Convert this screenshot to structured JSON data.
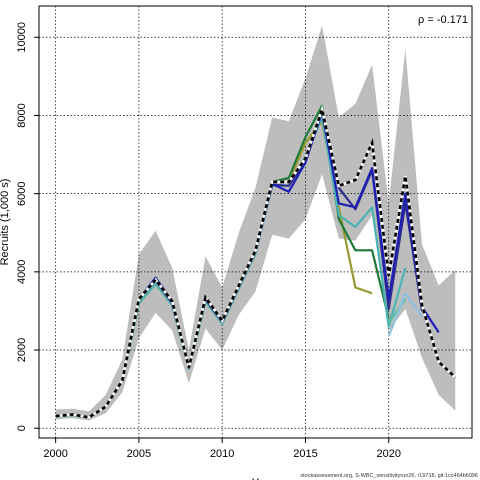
{
  "chart_data": {
    "type": "line",
    "title": "",
    "xlabel": "Y",
    "ylabel": "Recruits (1,000 s)",
    "xlim": [
      1999,
      2025
    ],
    "ylim": [
      -250,
      10800
    ],
    "xticks": [
      2000,
      2005,
      2010,
      2015,
      2020
    ],
    "yticks": [
      0,
      2000,
      4000,
      6000,
      8000,
      10000
    ],
    "grid": true,
    "annotation": "ρ = -0.171",
    "footer": "stockassessment.org, S-WBC_sensitivityrun26, r19718, git:1cc464b6096",
    "colors": {
      "band": "#bdbdbd",
      "base": "#000000",
      "peel1": "#1f1fb4",
      "peel2": "#2e2e8c",
      "peel3": "#4cb3b3",
      "peel4": "#1f7a3a",
      "peel5": "#999933",
      "peel6": "#8fc0e0",
      "peel7": "#5fbf9f"
    },
    "band": {
      "x": [
        2000,
        2001,
        2002,
        2003,
        2004,
        2005,
        2006,
        2007,
        2008,
        2009,
        2010,
        2011,
        2012,
        2013,
        2014,
        2015,
        2016,
        2017,
        2018,
        2019,
        2020,
        2021,
        2022,
        2023,
        2024
      ],
      "lower": [
        230,
        260,
        200,
        380,
        920,
        2300,
        2950,
        2500,
        1150,
        2550,
        2000,
        2900,
        3500,
        4950,
        4850,
        5350,
        6500,
        4850,
        4800,
        5450,
        2500,
        3050,
        1800,
        850,
        450
      ],
      "upper": [
        480,
        500,
        430,
        850,
        1750,
        4450,
        5050,
        4100,
        2000,
        4400,
        3600,
        5000,
        6150,
        7950,
        7850,
        8950,
        10300,
        7950,
        8300,
        9300,
        5750,
        9700,
        4700,
        3650,
        4050
      ]
    },
    "series": [
      {
        "name": "",
        "role": "base",
        "x": [
          2000,
          2001,
          2002,
          2003,
          2004,
          2005,
          2006,
          2007,
          2008,
          2009,
          2010,
          2011,
          2012,
          2013,
          2014,
          2015,
          2016,
          2017,
          2018,
          2019,
          2020,
          2021,
          2022,
          2023,
          2024
        ],
        "values": [
          310,
          350,
          280,
          550,
          1220,
          3300,
          3800,
          3250,
          1550,
          3350,
          2750,
          3650,
          4550,
          6300,
          6300,
          6900,
          8150,
          6200,
          6350,
          7300,
          3900,
          6450,
          3150,
          1700,
          1300
        ]
      },
      {
        "name": "",
        "role": "peel1",
        "x": [
          2000,
          2001,
          2002,
          2003,
          2004,
          2005,
          2006,
          2007,
          2008,
          2009,
          2010,
          2011,
          2012,
          2013,
          2014,
          2015,
          2016,
          2017,
          2018,
          2019,
          2020,
          2021,
          2022,
          2023
        ],
        "values": [
          310,
          350,
          280,
          550,
          1220,
          3300,
          3850,
          3250,
          1560,
          3330,
          2740,
          3640,
          4540,
          6250,
          6050,
          6800,
          8100,
          5750,
          5650,
          6650,
          3300,
          6000,
          3100,
          2450
        ]
      },
      {
        "name": "",
        "role": "peel2",
        "x": [
          2000,
          2001,
          2002,
          2003,
          2004,
          2005,
          2006,
          2007,
          2008,
          2009,
          2010,
          2011,
          2012,
          2013,
          2014,
          2015,
          2016,
          2017,
          2018,
          2019,
          2020,
          2021,
          2022
        ],
        "values": [
          310,
          350,
          280,
          550,
          1220,
          3300,
          3780,
          3200,
          1550,
          3300,
          2720,
          3620,
          4520,
          6230,
          6200,
          6850,
          8150,
          6150,
          5600,
          6600,
          3050,
          5750,
          3000
        ]
      },
      {
        "name": "",
        "role": "peel3",
        "x": [
          2000,
          2001,
          2002,
          2003,
          2004,
          2005,
          2006,
          2007,
          2008,
          2009,
          2010,
          2011,
          2012,
          2013,
          2014,
          2015,
          2016,
          2017,
          2018,
          2019,
          2020,
          2021
        ],
        "values": [
          300,
          340,
          270,
          540,
          1200,
          3200,
          3700,
          3150,
          1530,
          3250,
          2680,
          3580,
          4480,
          6200,
          6200,
          6950,
          7950,
          5450,
          5150,
          5650,
          2600,
          4100
        ]
      },
      {
        "name": "",
        "role": "peel4",
        "x": [
          2000,
          2001,
          2002,
          2003,
          2004,
          2005,
          2006,
          2007,
          2008,
          2009,
          2010,
          2011,
          2012,
          2013,
          2014,
          2015,
          2016,
          2017,
          2018,
          2019,
          2020
        ],
        "values": [
          300,
          340,
          270,
          540,
          1200,
          3200,
          3700,
          3150,
          1530,
          3250,
          2680,
          3580,
          4480,
          6300,
          6400,
          7450,
          8250,
          5350,
          4550,
          4550,
          2800
        ]
      },
      {
        "name": "",
        "role": "peel5",
        "x": [
          2000,
          2001,
          2002,
          2003,
          2004,
          2005,
          2006,
          2007,
          2008,
          2009,
          2010,
          2011,
          2012,
          2013,
          2014,
          2015,
          2016,
          2017,
          2018,
          2019
        ],
        "values": [
          300,
          340,
          270,
          540,
          1200,
          3200,
          3700,
          3150,
          1530,
          3250,
          2680,
          3580,
          4480,
          6300,
          6300,
          7300,
          7850,
          5650,
          3600,
          3450
        ]
      },
      {
        "name": "",
        "role": "peel6",
        "x": [
          2020,
          2021,
          2022
        ],
        "values": [
          2350,
          3450,
          2850
        ]
      },
      {
        "name": "",
        "role": "peel7",
        "x": [
          2020,
          2021
        ],
        "values": [
          2700,
          3300
        ]
      }
    ]
  }
}
